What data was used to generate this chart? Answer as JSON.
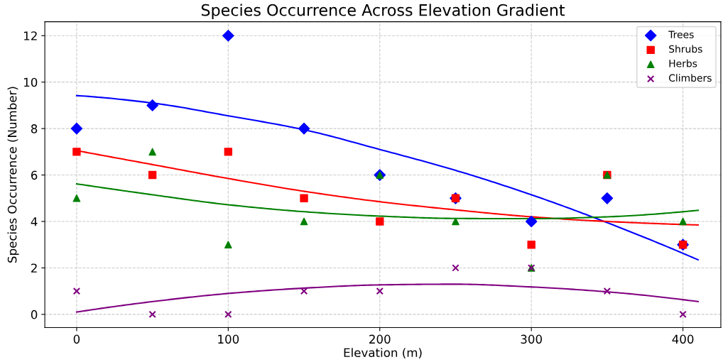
{
  "chart_data": {
    "type": "scatter",
    "title": "Species Occurrence Across Elevation Gradient",
    "xlabel": "Elevation (m)",
    "ylabel": "Species Occurrence (Number)",
    "x": [
      0,
      50,
      100,
      150,
      200,
      250,
      300,
      350,
      400
    ],
    "xlim": [
      -21,
      425
    ],
    "xticks": [
      0,
      100,
      200,
      300,
      400
    ],
    "ylim": [
      -0.57,
      12.6
    ],
    "yticks": [
      0,
      2,
      4,
      6,
      8,
      10,
      12
    ],
    "grid": true,
    "legend": "top right",
    "series": [
      {
        "name": "Trees",
        "color": "#0000ff",
        "marker": "diamond",
        "values": [
          8,
          9,
          12,
          8,
          6,
          5,
          4,
          5,
          3
        ]
      },
      {
        "name": "Shrubs",
        "color": "#ff0000",
        "marker": "square",
        "values": [
          7,
          6,
          7,
          5,
          4,
          5,
          3,
          6,
          3
        ]
      },
      {
        "name": "Herbs",
        "color": "#008000",
        "marker": "triangle",
        "values": [
          5,
          7,
          3,
          4,
          6,
          4,
          2,
          6,
          4
        ]
      },
      {
        "name": "Climbers",
        "color": "#800080",
        "marker": "cross",
        "values": [
          1,
          0,
          0,
          1,
          1,
          2,
          2,
          1,
          0
        ]
      },
      {
        "type": "line",
        "color": "#0000ff",
        "marker": "none",
        "x": [
          0,
          50,
          100,
          150,
          200,
          250,
          300,
          350,
          410
        ],
        "values": [
          9.42,
          9.1,
          8.55,
          7.95,
          7.1,
          6.2,
          5.15,
          3.95,
          2.35
        ]
      },
      {
        "type": "line",
        "color": "#ff0000",
        "marker": "none",
        "x": [
          0,
          50,
          100,
          150,
          200,
          250,
          300,
          350,
          410
        ],
        "values": [
          7.05,
          6.45,
          5.85,
          5.3,
          4.85,
          4.5,
          4.2,
          4.0,
          3.85
        ]
      },
      {
        "type": "line",
        "color": "#008000",
        "marker": "none",
        "x": [
          0,
          50,
          100,
          150,
          200,
          250,
          300,
          350,
          410
        ],
        "values": [
          5.62,
          5.15,
          4.72,
          4.42,
          4.23,
          4.13,
          4.12,
          4.2,
          4.48
        ]
      },
      {
        "type": "line",
        "color": "#800080",
        "marker": "none",
        "x": [
          0,
          50,
          100,
          150,
          200,
          250,
          300,
          350,
          410
        ],
        "values": [
          0.1,
          0.55,
          0.9,
          1.13,
          1.27,
          1.3,
          1.18,
          0.97,
          0.55
        ]
      }
    ]
  }
}
